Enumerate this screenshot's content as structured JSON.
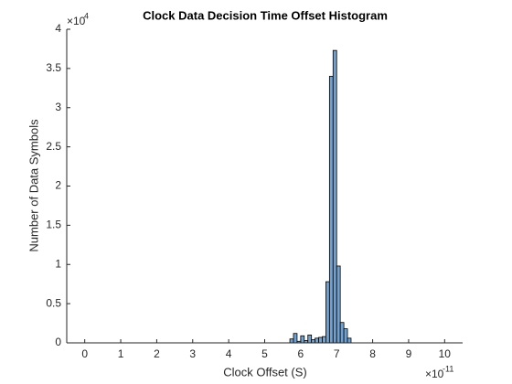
{
  "chart_data": {
    "type": "histogram",
    "title": "Clock Data Decision Time Offset Histogram",
    "xlabel": "Clock Offset (S)",
    "ylabel": "Number of Data Symbols",
    "x_exponent_base": "×10",
    "x_exponent_power": "-11",
    "y_exponent_base": "×10",
    "y_exponent_power": "4",
    "bins": [
      5.7e-11,
      5.8e-11,
      5.9e-11,
      6e-11,
      6.1e-11,
      6.2e-11,
      6.3e-11,
      6.4e-11,
      6.5e-11,
      6.6e-11,
      6.7e-11,
      6.8e-11,
      6.9e-11,
      7e-11,
      7.1e-11,
      7.2e-11,
      7.3e-11,
      7.4e-11
    ],
    "values": [
      500,
      1200,
      200,
      900,
      300,
      1000,
      400,
      600,
      700,
      800,
      7800,
      34000,
      37300,
      9800,
      2600,
      1800,
      600
    ],
    "color": "#6ea2d4",
    "xlim": [
      -5e-12,
      1.05e-10
    ],
    "xticks": [
      {
        "value": 0,
        "label": "0"
      },
      {
        "value": 1e-11,
        "label": "1"
      },
      {
        "value": 2e-11,
        "label": "2"
      },
      {
        "value": 3e-11,
        "label": "3"
      },
      {
        "value": 4e-11,
        "label": "4"
      },
      {
        "value": 5e-11,
        "label": "5"
      },
      {
        "value": 6e-11,
        "label": "6"
      },
      {
        "value": 7e-11,
        "label": "7"
      },
      {
        "value": 8e-11,
        "label": "8"
      },
      {
        "value": 9e-11,
        "label": "9"
      },
      {
        "value": 1e-10,
        "label": "10"
      }
    ],
    "ylim": [
      0,
      40000
    ],
    "yticks": [
      {
        "value": 0,
        "label": "0"
      },
      {
        "value": 5000,
        "label": "0.5"
      },
      {
        "value": 10000,
        "label": "1"
      },
      {
        "value": 15000,
        "label": "1.5"
      },
      {
        "value": 20000,
        "label": "2"
      },
      {
        "value": 25000,
        "label": "2.5"
      },
      {
        "value": 30000,
        "label": "3"
      },
      {
        "value": 35000,
        "label": "3.5"
      },
      {
        "value": 40000,
        "label": "4"
      }
    ]
  }
}
